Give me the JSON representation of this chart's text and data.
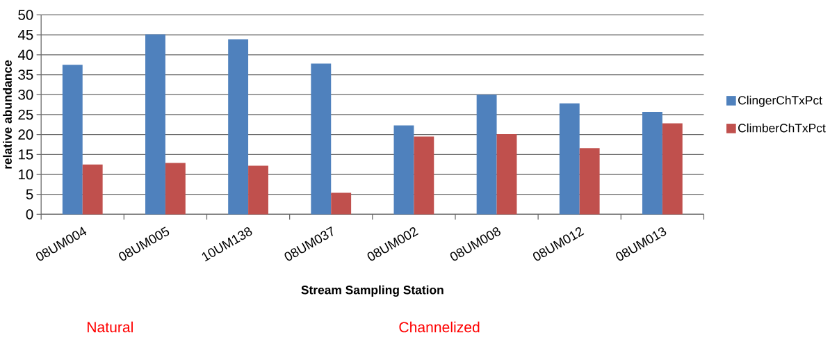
{
  "chart_data": {
    "type": "bar",
    "xlabel": "Stream Sampling Station",
    "ylabel": "relative abundance",
    "categories": [
      "08UM004",
      "08UM005",
      "10UM138",
      "08UM037",
      "08UM002",
      "08UM008",
      "08UM012",
      "08UM013"
    ],
    "series": [
      {
        "name": "ClingerChTxPct",
        "color": "#4f81bd",
        "values": [
          37.5,
          45.1,
          43.9,
          37.8,
          22.3,
          30.0,
          27.8,
          25.7
        ]
      },
      {
        "name": "ClimberChTxPct",
        "color": "#c0504d",
        "values": [
          12.5,
          12.9,
          12.2,
          5.4,
          19.5,
          20.1,
          16.6,
          22.8
        ]
      }
    ],
    "ylim": [
      0,
      50
    ],
    "yticks": [
      0,
      5,
      10,
      15,
      20,
      25,
      30,
      35,
      40,
      45,
      50
    ],
    "grid": "y",
    "legend": "right",
    "annotations": [
      "Natural",
      "Channelized"
    ]
  }
}
